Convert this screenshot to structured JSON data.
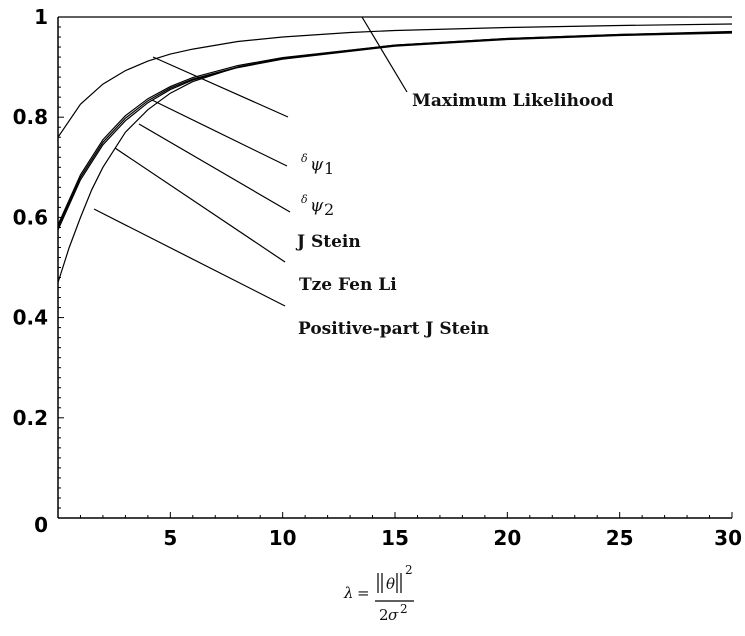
{
  "chart_data": {
    "type": "line",
    "title": "",
    "xlim": [
      0,
      30
    ],
    "ylim": [
      0,
      1
    ],
    "x_ticks": [
      "5",
      "10",
      "15",
      "20",
      "25",
      "30"
    ],
    "y_ticks": [
      "0",
      "0.2",
      "0.4",
      "0.6",
      "0.8",
      "1"
    ],
    "xlabel": {
      "lhs": "λ",
      "eq": "=",
      "numerator_symbol": "θ",
      "numerator_exponent": "2",
      "denominator_coef": "2",
      "denominator_symbol": "σ",
      "denominator_exponent": "2"
    },
    "grid": false,
    "series": [
      {
        "name": "Maximum Likelihood",
        "label_parts": [
          "Maximum Likelihood"
        ],
        "x": [
          0,
          5,
          10,
          15,
          20,
          25,
          30
        ],
        "y": [
          1,
          1,
          1,
          1,
          1,
          1,
          1
        ]
      },
      {
        "name": "δψ1",
        "label_parts": [
          "δ",
          "ψ",
          "1"
        ],
        "x": [
          0,
          1,
          2,
          3,
          4,
          5,
          6,
          8,
          10,
          13,
          15,
          20,
          25,
          30
        ],
        "y": [
          0.76,
          0.826,
          0.866,
          0.893,
          0.912,
          0.926,
          0.936,
          0.951,
          0.96,
          0.969,
          0.973,
          0.979,
          0.983,
          0.986
        ]
      },
      {
        "name": "δψ2",
        "label_parts": [
          "δ",
          "ψ",
          "2"
        ],
        "x": [
          0,
          1,
          2,
          3,
          4,
          5,
          6,
          8,
          10,
          15,
          20,
          25,
          30
        ],
        "y": [
          0.585,
          0.685,
          0.755,
          0.803,
          0.837,
          0.861,
          0.879,
          0.903,
          0.919,
          0.944,
          0.957,
          0.965,
          0.971
        ]
      },
      {
        "name": "J Stein",
        "label_parts": [
          "J Stein"
        ],
        "x": [
          0,
          1,
          2,
          3,
          4,
          5,
          6,
          8,
          10,
          15,
          20,
          25,
          30
        ],
        "y": [
          0.58,
          0.68,
          0.75,
          0.798,
          0.833,
          0.858,
          0.876,
          0.9,
          0.917,
          0.943,
          0.956,
          0.964,
          0.969
        ]
      },
      {
        "name": "Tze Fen Li",
        "label_parts": [
          "Tze Fen Li"
        ],
        "x": [
          0,
          1,
          2,
          3,
          4,
          5,
          6,
          8,
          10,
          15,
          20,
          25,
          30
        ],
        "y": [
          0.575,
          0.675,
          0.745,
          0.793,
          0.829,
          0.855,
          0.874,
          0.899,
          0.916,
          0.942,
          0.955,
          0.963,
          0.968
        ]
      },
      {
        "name": "Positive-part J Stein",
        "label_parts": [
          "Positive-part J Stein"
        ],
        "x": [
          0,
          0.5,
          1,
          1.5,
          2,
          3,
          4,
          5,
          6,
          8,
          10,
          15,
          20,
          25,
          30
        ],
        "y": [
          0.47,
          0.54,
          0.6,
          0.655,
          0.7,
          0.77,
          0.815,
          0.848,
          0.871,
          0.9,
          0.918,
          0.944,
          0.957,
          0.965,
          0.97
        ]
      }
    ]
  }
}
